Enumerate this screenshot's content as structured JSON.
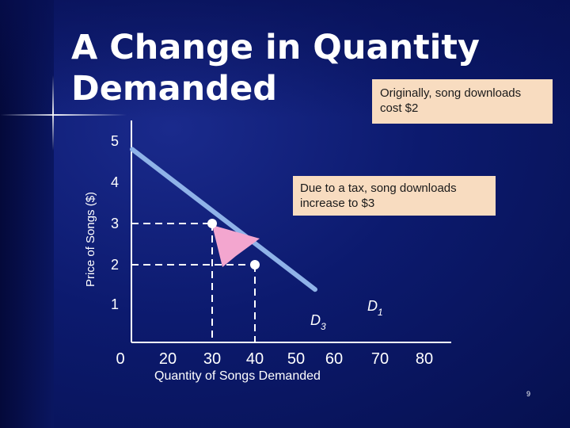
{
  "slide": {
    "title_line1": "A Change in Quantity",
    "title_line2": "Demanded",
    "page_number": "9"
  },
  "callouts": {
    "original": "Originally, song downloads cost $2",
    "tax": "Due to a tax, song downloads increase to $3"
  },
  "colors": {
    "demand_line": "#8fb3e8",
    "arrow": "#f3a6cf",
    "callout_bg": "#f8dcc0",
    "background": "#0c1a6e"
  },
  "chart_data": {
    "type": "line",
    "title": "",
    "xlabel": "Quantity of Songs Demanded",
    "ylabel": "Price of Songs ($)",
    "x_ticks": [
      "0",
      "20",
      "30",
      "40",
      "50",
      "60",
      "70",
      "80"
    ],
    "y_ticks": [
      "1",
      "2",
      "3",
      "4",
      "5"
    ],
    "series": [
      {
        "name": "Demand",
        "x": [
          5,
          55
        ],
        "y": [
          4.8,
          1.4
        ]
      }
    ],
    "points": [
      {
        "label": "original",
        "x": 40,
        "y": 2
      },
      {
        "label": "after tax",
        "x": 30,
        "y": 3
      }
    ],
    "movement": {
      "from_index": 0,
      "to_index": 1
    },
    "curve_labels": [
      {
        "main": "D",
        "sub": "3"
      },
      {
        "main": "D",
        "sub": "1"
      }
    ]
  }
}
